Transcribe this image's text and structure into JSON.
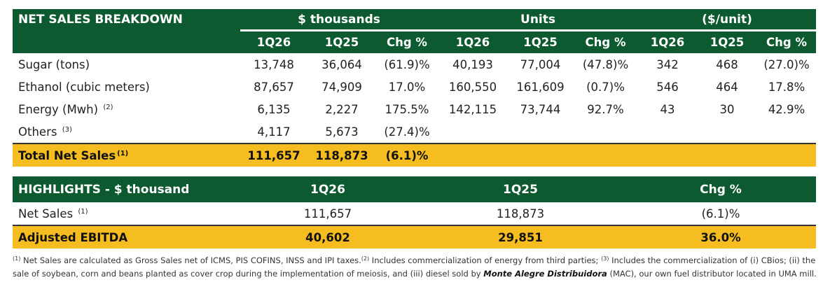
{
  "t1": {
    "title": "NET SALES BREAKDOWN",
    "group_headers": [
      "$ thousands",
      "Units",
      "($/unit)"
    ],
    "sub_headers": [
      "1Q26",
      "1Q25",
      "Chg %",
      "1Q26",
      "1Q25",
      "Chg %",
      "1Q26",
      "1Q25",
      "Chg %"
    ],
    "rows": [
      {
        "label": "Sugar (tons)",
        "sup": "",
        "cells": [
          "13,748",
          "36,064",
          "(61.9)%",
          "40,193",
          "77,004",
          "(47.8)%",
          "342",
          "468",
          "(27.0)%"
        ]
      },
      {
        "label": "Ethanol (cubic meters)",
        "sup": "",
        "cells": [
          "87,657",
          "74,909",
          "17.0%",
          "160,550",
          "161,609",
          "(0.7)%",
          "546",
          "464",
          "17.8%"
        ]
      },
      {
        "label": "Energy (Mwh)",
        "sup": "(2)",
        "cells": [
          "6,135",
          "2,227",
          "175.5%",
          "142,115",
          "73,744",
          "92.7%",
          "43",
          "30",
          "42.9%"
        ]
      },
      {
        "label": "Others",
        "sup": "(3)",
        "cells": [
          "4,117",
          "5,673",
          "(27.4)%",
          "",
          "",
          "",
          "",
          "",
          ""
        ]
      }
    ],
    "total": {
      "label": "Total Net Sales",
      "sup": "(1)",
      "cells": [
        "111,657",
        "118,873",
        "(6.1)%",
        "",
        "",
        "",
        "",
        "",
        ""
      ]
    }
  },
  "t2": {
    "title": "HIGHLIGHTS - $ thousand",
    "headers": [
      "1Q26",
      "1Q25",
      "Chg %"
    ],
    "row": {
      "label": "Net Sales",
      "sup": "(1)",
      "cells": [
        "111,657",
        "118,873",
        "(6.1)%"
      ]
    },
    "total": {
      "label": "Adjusted EBITDA",
      "cells": [
        "40,602",
        "29,851",
        "36.0%"
      ]
    }
  },
  "footnote": {
    "s1": "(1)",
    "p1": " Net Sales are calculated as Gross Sales net of ICMS, PIS COFINS, INSS and IPI taxes.",
    "s2": "(2)",
    "p2": " Includes commercialization of energy from third parties; ",
    "s3": "(3)",
    "p3": " Includes the commercialization of (i) CBios; (ii) the sale of soybean, corn and beans planted as cover crop during the implementation of meiosis, and (iii) diesel sold by ",
    "bold": "Monte Alegre Distribuidora",
    "p4": " (MAC), our own fuel distributor located in UMA mill."
  }
}
